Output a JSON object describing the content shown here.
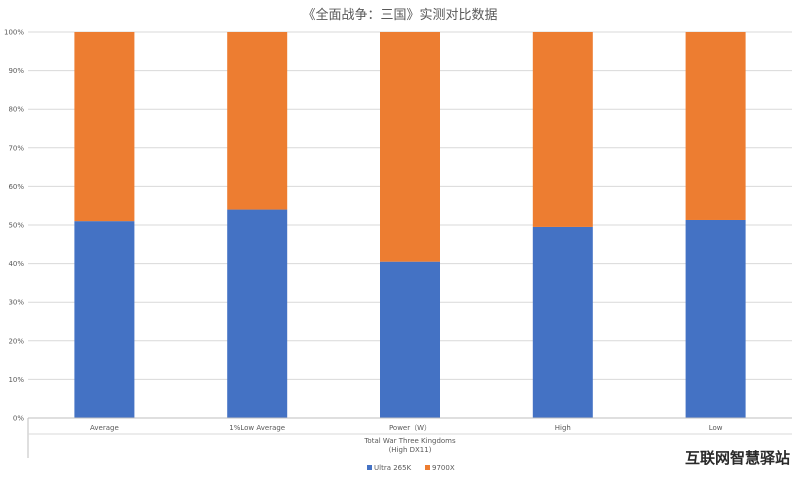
{
  "chart_data": {
    "type": "bar",
    "stacked": true,
    "percent_stacked": true,
    "title": "《全面战争：三国》实测对比数据",
    "categories": [
      "Average",
      "1%Low Average",
      "Power（W）",
      "High",
      "Low"
    ],
    "group_label_line1": "Total War Three Kingdoms",
    "group_label_line2": "(High DX11)",
    "y_ticks": [
      "0%",
      "10%",
      "20%",
      "30%",
      "40%",
      "50%",
      "60%",
      "70%",
      "80%",
      "90%",
      "100%"
    ],
    "ylim": [
      0,
      100
    ],
    "grid": true,
    "legend_position": "bottom",
    "series": [
      {
        "name": "Ultra 265K",
        "color": "#4472C4",
        "values": [
          51,
          54,
          40.5,
          49.5,
          51.3
        ]
      },
      {
        "name": "9700X",
        "color": "#ED7D31",
        "values": [
          49,
          46,
          59.5,
          50.5,
          48.7
        ]
      }
    ]
  },
  "watermark": "互联网智慧驿站"
}
